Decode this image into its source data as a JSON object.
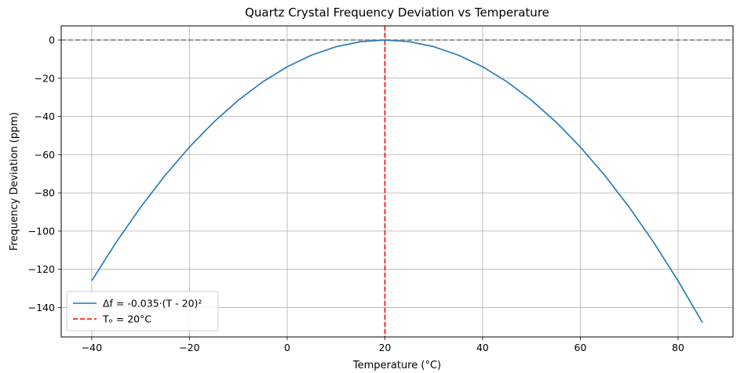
{
  "chart_data": {
    "type": "line",
    "title": "Quartz Crystal Frequency Deviation vs Temperature",
    "xlabel": "Temperature (°C)",
    "ylabel": "Frequency Deviation (ppm)",
    "xlim": [
      -46.25,
      91.25
    ],
    "ylim": [
      -155.4,
      7.4
    ],
    "xticks": [
      -40,
      -20,
      0,
      20,
      40,
      60,
      80
    ],
    "xtick_labels": [
      "−40",
      "−20",
      "0",
      "20",
      "40",
      "60",
      "80"
    ],
    "yticks": [
      0,
      -20,
      -40,
      -60,
      -80,
      -100,
      -120,
      -140
    ],
    "ytick_labels": [
      "0",
      "−20",
      "−40",
      "−60",
      "−80",
      "−100",
      "−120",
      "−140"
    ],
    "grid": true,
    "legend_position": "lower-left",
    "series": [
      {
        "name": "Δf = -0.035·(T - 20)²",
        "color": "#1f77b4",
        "style": "solid",
        "x": [
          -40,
          -35,
          -30,
          -25,
          -20,
          -15,
          -10,
          -5,
          0,
          5,
          10,
          15,
          20,
          25,
          30,
          35,
          40,
          45,
          50,
          55,
          60,
          65,
          70,
          75,
          80,
          85
        ],
        "y": [
          -126.0,
          -105.875,
          -87.5,
          -70.875,
          -56.0,
          -42.875,
          -31.5,
          -21.875,
          -14.0,
          -7.875,
          -3.5,
          -0.875,
          0.0,
          -0.875,
          -3.5,
          -7.875,
          -14.0,
          -21.875,
          -31.5,
          -42.875,
          -56.0,
          -70.875,
          -87.5,
          -105.875,
          -126.0,
          -147.875
        ]
      }
    ],
    "reference_lines": [
      {
        "orientation": "vertical",
        "x": 20,
        "name": "Tₒ = 20°C",
        "color": "#ff0000",
        "style": "dashed",
        "in_legend": true
      },
      {
        "orientation": "horizontal",
        "y": 0,
        "color": "#808080",
        "style": "dashed",
        "in_legend": false
      }
    ]
  }
}
